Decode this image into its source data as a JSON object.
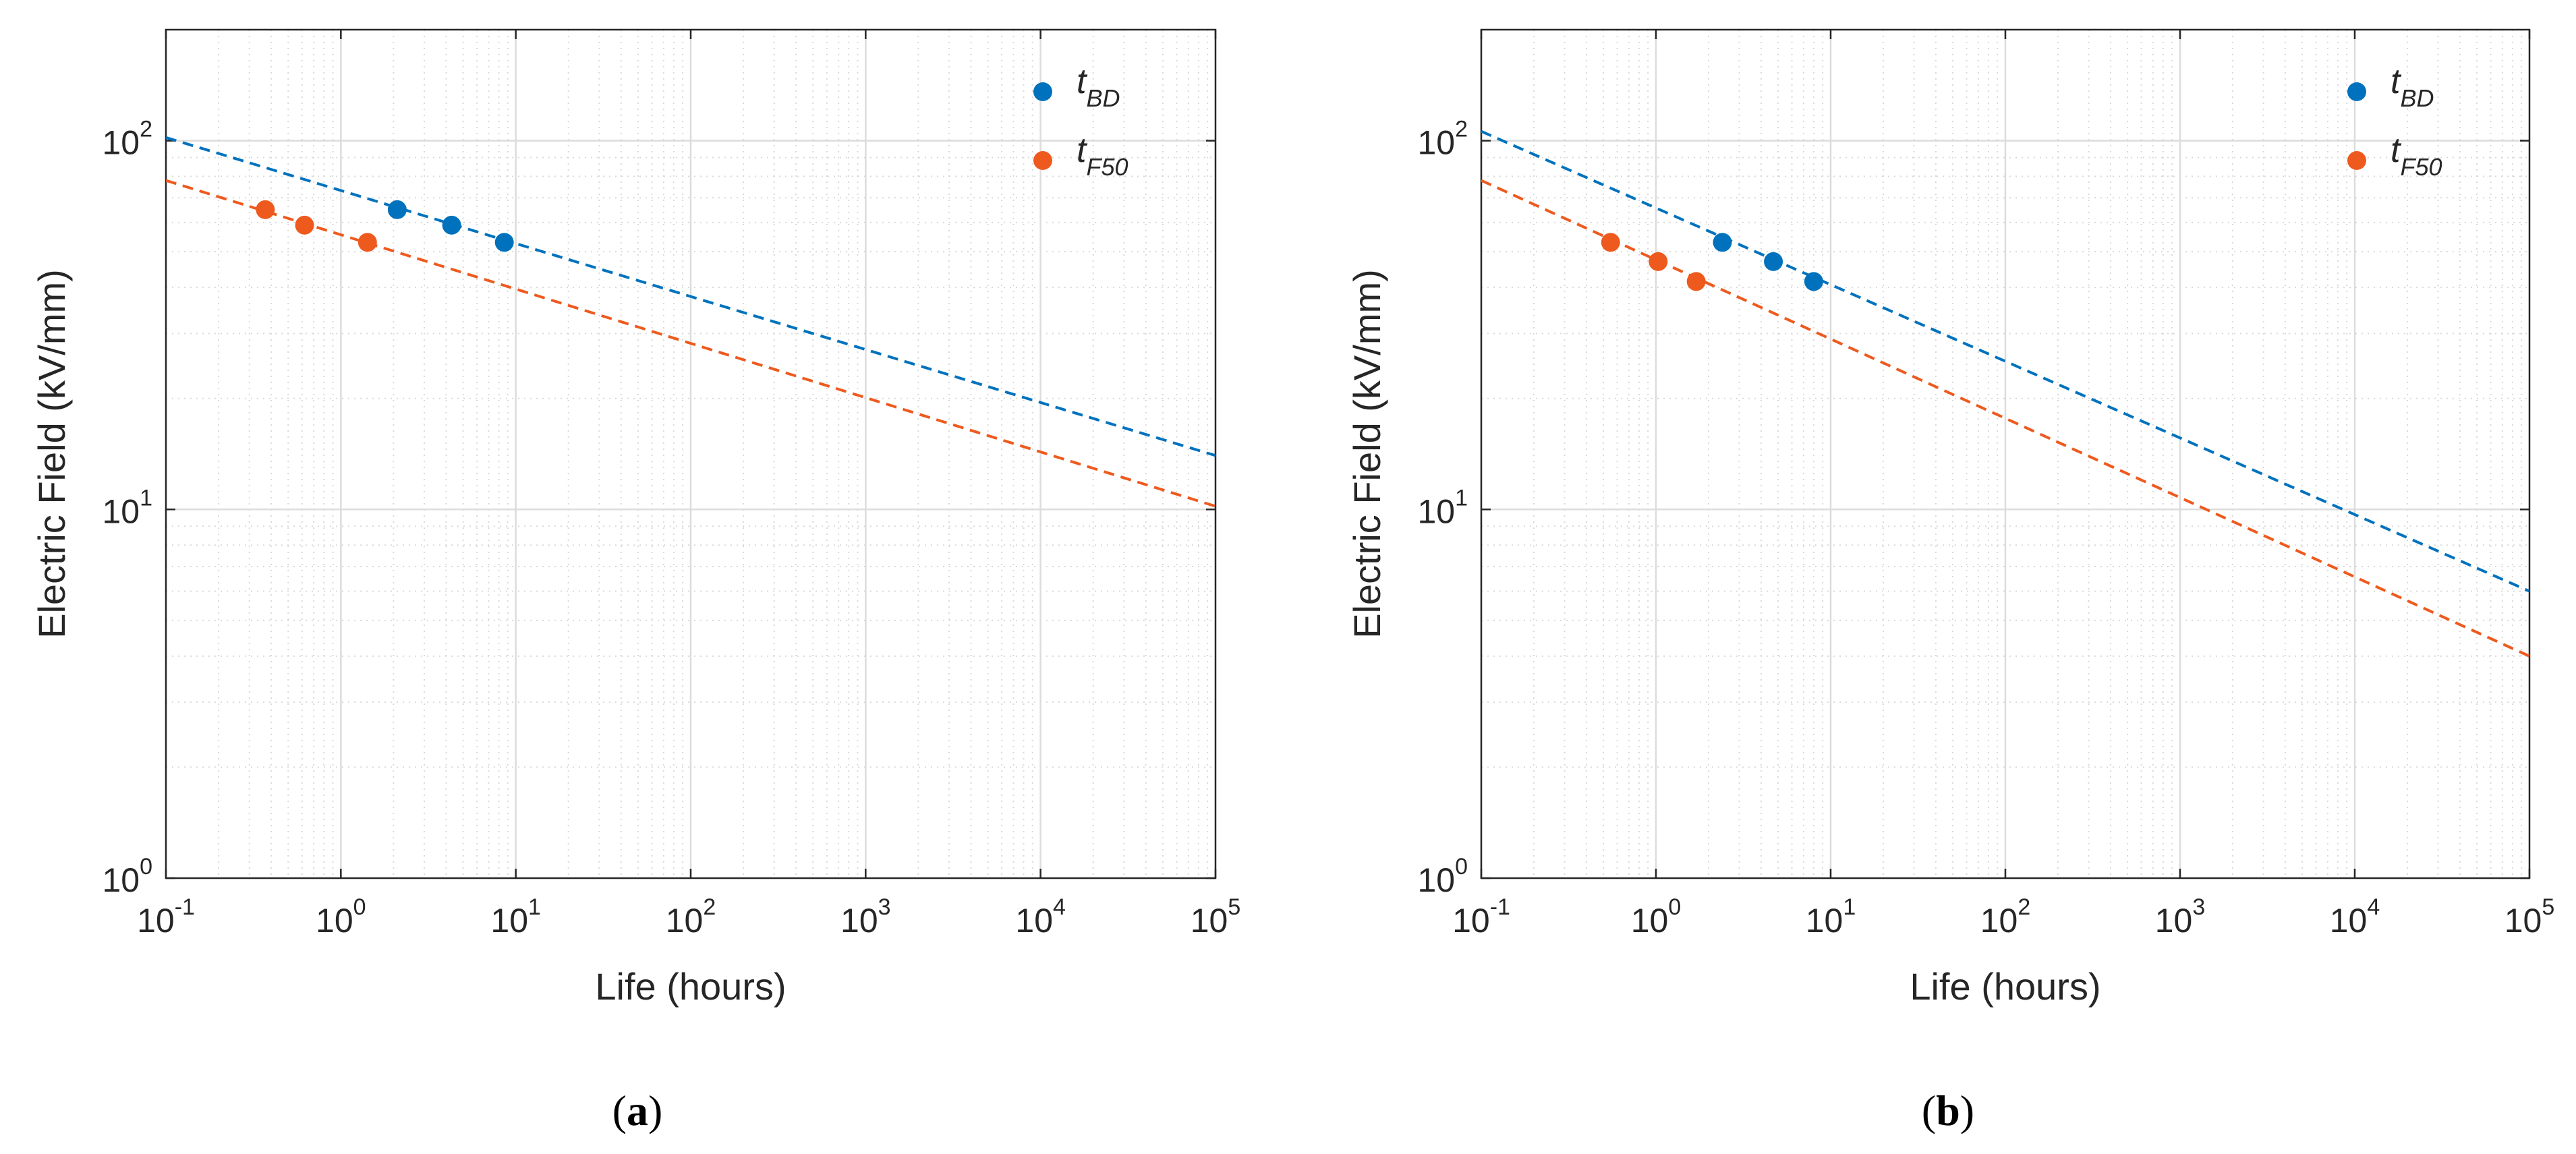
{
  "chart_data": [
    {
      "type": "scatter",
      "panel_label": "a",
      "xlabel": "Life (hours)",
      "ylabel": "Electric Field (kV/mm)",
      "xscale": "log",
      "yscale": "log",
      "xlim": [
        0.1,
        100000
      ],
      "ylim": [
        1,
        200
      ],
      "xticks": [
        {
          "base": "10",
          "exp": "-1",
          "value": 0.1
        },
        {
          "base": "10",
          "exp": "0",
          "value": 1
        },
        {
          "base": "10",
          "exp": "1",
          "value": 10
        },
        {
          "base": "10",
          "exp": "2",
          "value": 100
        },
        {
          "base": "10",
          "exp": "3",
          "value": 1000
        },
        {
          "base": "10",
          "exp": "4",
          "value": 10000
        },
        {
          "base": "10",
          "exp": "5",
          "value": 100000
        }
      ],
      "yticks": [
        {
          "base": "10",
          "exp": "0",
          "value": 1
        },
        {
          "base": "10",
          "exp": "1",
          "value": 10
        },
        {
          "base": "10",
          "exp": "2",
          "value": 100
        }
      ],
      "grid": true,
      "legend_position": "top-right",
      "series": [
        {
          "name_main": "t",
          "name_sub": "BD",
          "color": "#0072BD",
          "points": [
            {
              "x": 2.1,
              "y": 65
            },
            {
              "x": 4.3,
              "y": 59
            },
            {
              "x": 8.6,
              "y": 53
            }
          ],
          "fit_line": [
            {
              "x": 0.1,
              "y": 102
            },
            {
              "x": 100000,
              "y": 14
            }
          ]
        },
        {
          "name_main": "t",
          "name_sub": "F50",
          "color": "#EE5A1E",
          "points": [
            {
              "x": 0.37,
              "y": 65
            },
            {
              "x": 0.62,
              "y": 59
            },
            {
              "x": 1.42,
              "y": 53
            }
          ],
          "fit_line": [
            {
              "x": 0.1,
              "y": 78
            },
            {
              "x": 100000,
              "y": 10.2
            }
          ]
        }
      ]
    },
    {
      "type": "scatter",
      "panel_label": "b",
      "xlabel": "Life (hours)",
      "ylabel": "Electric Field (kV/mm)",
      "xscale": "log",
      "yscale": "log",
      "xlim": [
        0.1,
        100000
      ],
      "ylim": [
        1,
        200
      ],
      "xticks": [
        {
          "base": "10",
          "exp": "-1",
          "value": 0.1
        },
        {
          "base": "10",
          "exp": "0",
          "value": 1
        },
        {
          "base": "10",
          "exp": "1",
          "value": 10
        },
        {
          "base": "10",
          "exp": "2",
          "value": 100
        },
        {
          "base": "10",
          "exp": "3",
          "value": 1000
        },
        {
          "base": "10",
          "exp": "4",
          "value": 10000
        },
        {
          "base": "10",
          "exp": "5",
          "value": 100000
        }
      ],
      "yticks": [
        {
          "base": "10",
          "exp": "0",
          "value": 1
        },
        {
          "base": "10",
          "exp": "1",
          "value": 10
        },
        {
          "base": "10",
          "exp": "2",
          "value": 100
        }
      ],
      "grid": true,
      "legend_position": "top-right",
      "series": [
        {
          "name_main": "t",
          "name_sub": "BD",
          "color": "#0072BD",
          "points": [
            {
              "x": 2.4,
              "y": 53
            },
            {
              "x": 4.7,
              "y": 47
            },
            {
              "x": 8.0,
              "y": 41.5
            }
          ],
          "fit_line": [
            {
              "x": 0.1,
              "y": 106
            },
            {
              "x": 100000,
              "y": 6
            }
          ]
        },
        {
          "name_main": "t",
          "name_sub": "F50",
          "color": "#EE5A1E",
          "points": [
            {
              "x": 0.55,
              "y": 53
            },
            {
              "x": 1.03,
              "y": 47
            },
            {
              "x": 1.7,
              "y": 41.5
            }
          ],
          "fit_line": [
            {
              "x": 0.1,
              "y": 78
            },
            {
              "x": 100000,
              "y": 4
            }
          ]
        }
      ]
    }
  ]
}
